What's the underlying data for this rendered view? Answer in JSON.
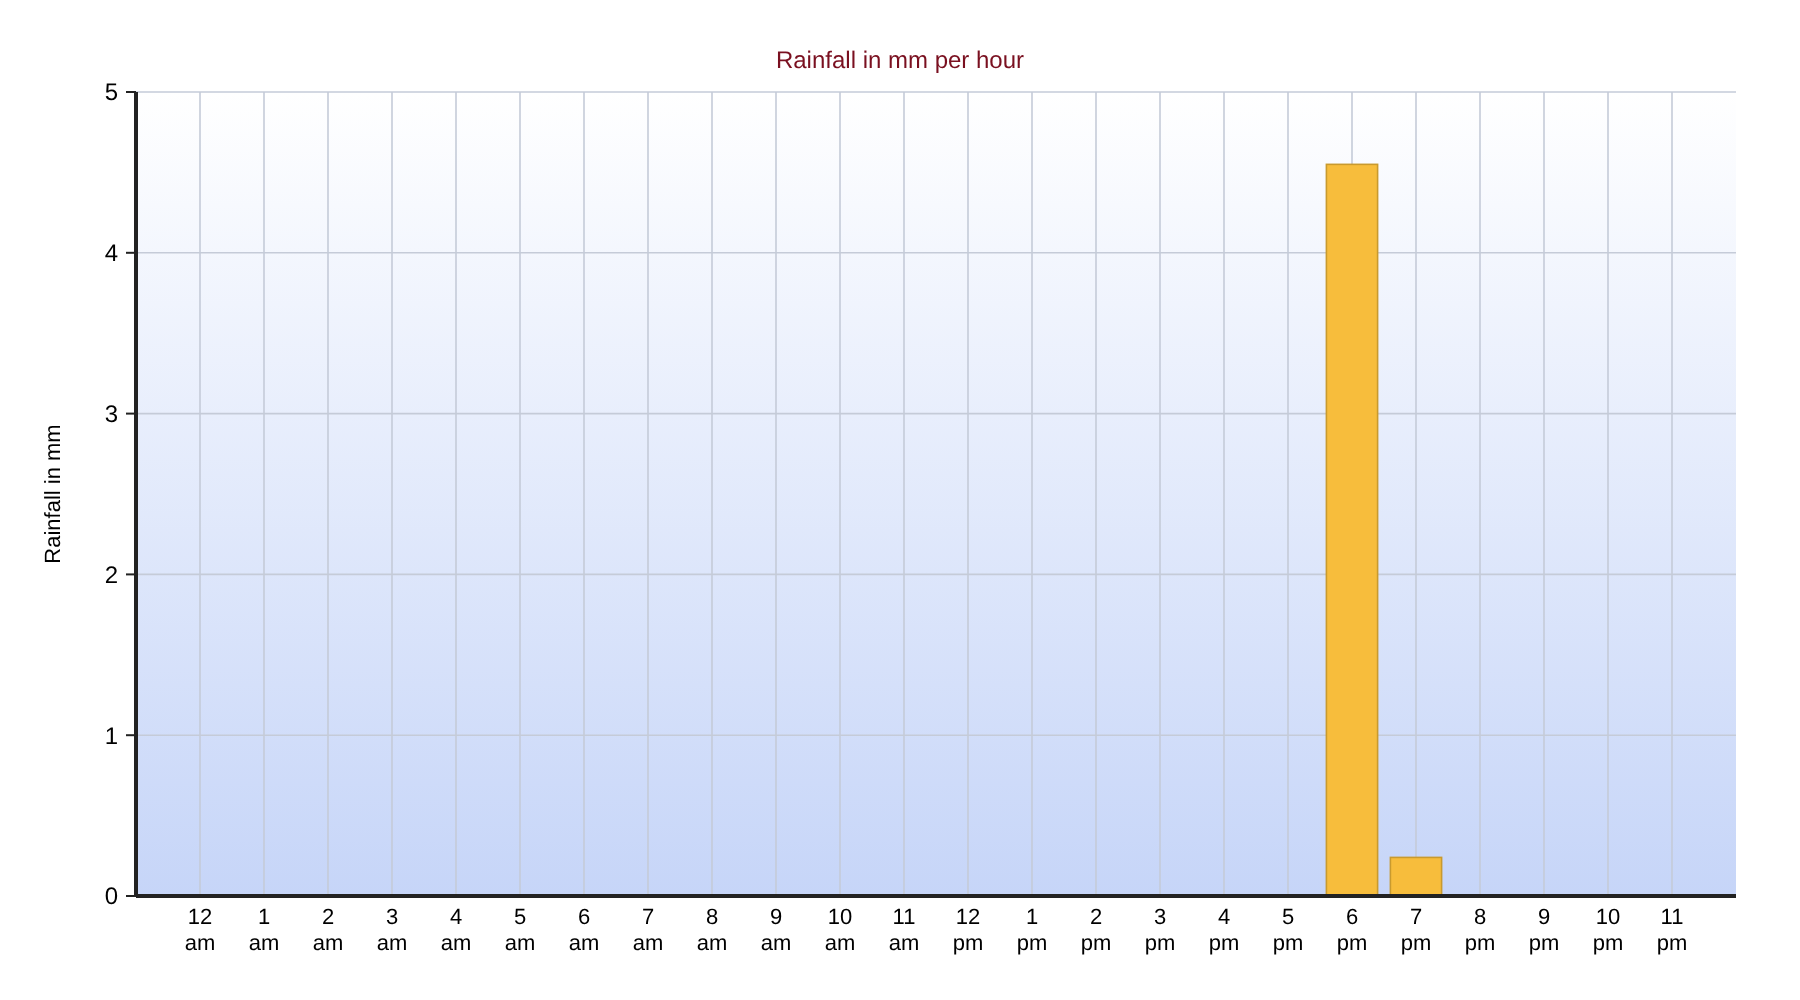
{
  "chart_data": {
    "type": "bar",
    "title": "Rainfall in mm per hour",
    "ylabel": "Rainfall in mm",
    "categories": [
      "12 am",
      "1 am",
      "2 am",
      "3 am",
      "4 am",
      "5 am",
      "6 am",
      "7 am",
      "8 am",
      "9 am",
      "10 am",
      "11 am",
      "12 pm",
      "1 pm",
      "2 pm",
      "3 pm",
      "4 pm",
      "5 pm",
      "6 pm",
      "7 pm",
      "8 pm",
      "9 pm",
      "10 pm",
      "11 pm"
    ],
    "values": [
      0,
      0,
      0,
      0,
      0,
      0,
      0,
      0,
      0,
      0,
      0,
      0,
      0,
      0,
      0,
      0,
      0,
      0,
      4.55,
      0.24,
      0,
      0,
      0,
      0
    ],
    "color": "#f7bd3c",
    "ylim": [
      0,
      5
    ],
    "yticks": [
      0,
      1,
      2,
      3,
      4,
      5
    ],
    "grid": true
  }
}
